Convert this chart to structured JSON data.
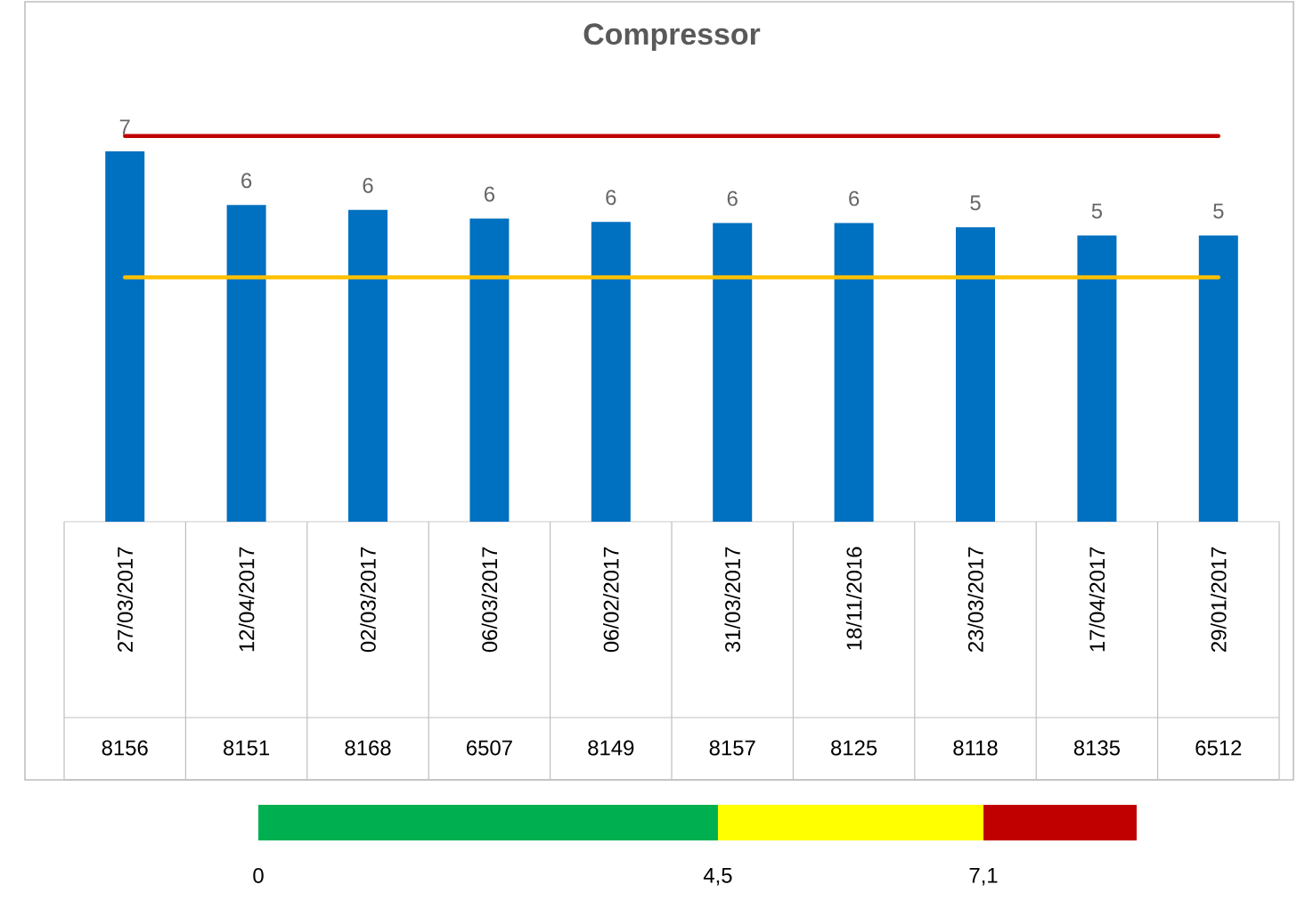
{
  "chart_data": [
    {
      "type": "bar",
      "title": "Compressor",
      "categories": [
        "27/03/2017",
        "12/04/2017",
        "02/03/2017",
        "06/03/2017",
        "06/02/2017",
        "31/03/2017",
        "18/11/2016",
        "23/03/2017",
        "17/04/2017",
        "29/01/2017"
      ],
      "values": [
        6.82,
        5.83,
        5.74,
        5.58,
        5.52,
        5.5,
        5.5,
        5.42,
        5.27,
        5.27
      ],
      "value_labels": [
        "7",
        "6",
        "6",
        "6",
        "6",
        "6",
        "6",
        "5",
        "5",
        "5"
      ],
      "color": "#0070c0",
      "tick_labels": "x",
      "ref_lines": [
        {
          "axis": "y",
          "value": 7.1,
          "color": "#c00000"
        },
        {
          "axis": "y",
          "value": 4.5,
          "color": "#ffc000"
        }
      ],
      "annotations": [
        "8156",
        "8151",
        "8168",
        "6507",
        "8149",
        "8157",
        "8125",
        "8118",
        "8135",
        "6512"
      ]
    },
    {
      "type": "bar",
      "orientation": "horizontal",
      "stacked": true,
      "categories": [
        null
      ],
      "series": [
        {
          "color": "#00b050",
          "values": [
            4.5
          ]
        },
        {
          "color": "#ffff00",
          "values": [
            2.6
          ]
        },
        {
          "color": "#c00000",
          "values": [
            1.5
          ]
        }
      ],
      "xlim": [
        0,
        8.6
      ],
      "xticks": [
        {
          "value": 0,
          "label": "0"
        },
        {
          "value": 4.5,
          "label": "4,5"
        },
        {
          "value": 7.1,
          "label": "7,1"
        }
      ],
      "tick_labels": "x"
    }
  ]
}
